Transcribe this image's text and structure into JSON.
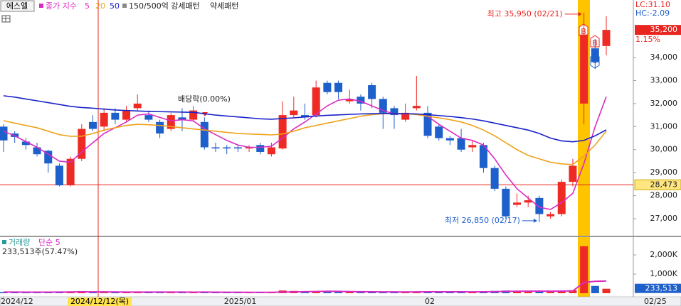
{
  "chart_data": {
    "type": "candlestick",
    "stock_name": "에스엘",
    "indicator_label": "종가 지수",
    "pattern_labels": [
      "150/500억 강세패턴",
      "약세패턴"
    ],
    "categories": [
      "2024/12",
      null,
      null,
      null,
      null,
      null,
      null,
      null,
      null,
      null,
      null,
      null,
      null,
      null,
      null,
      null,
      null,
      null,
      null,
      null,
      "2025/01",
      null,
      null,
      null,
      null,
      null,
      null,
      null,
      null,
      null,
      null,
      null,
      null,
      null,
      null,
      null,
      null,
      null,
      "02",
      null,
      null,
      null,
      null,
      null,
      null,
      null,
      null,
      null,
      null,
      null,
      null,
      null,
      null,
      null,
      null
    ],
    "open": [
      31000,
      30700,
      30350,
      30100,
      29950,
      29300,
      28450,
      29600,
      31200,
      31000,
      31600,
      31300,
      31800,
      31500,
      31200,
      30900,
      31400,
      31300,
      31200,
      30100,
      30100,
      30100,
      30050,
      30200,
      29800,
      30050,
      31500,
      31500,
      31500,
      32900,
      32900,
      32100,
      32300,
      32800,
      32200,
      31800,
      31300,
      31800,
      31600,
      31000,
      30500,
      30500,
      30100,
      30200,
      29200,
      28300,
      27600,
      27700,
      27900,
      27100,
      27200,
      28600,
      32000,
      34400,
      34500
    ],
    "high": [
      31100,
      30800,
      30500,
      30300,
      30000,
      29400,
      29700,
      31100,
      31500,
      31800,
      31800,
      31900,
      32400,
      31700,
      31300,
      31600,
      31800,
      31900,
      31400,
      30300,
      30200,
      30200,
      30200,
      30300,
      30300,
      32100,
      32300,
      32000,
      33000,
      33000,
      33000,
      32600,
      32400,
      32900,
      32300,
      31900,
      32000,
      33200,
      31900,
      31100,
      30600,
      30900,
      30400,
      30300,
      29300,
      28400,
      28100,
      28000,
      28000,
      27300,
      28700,
      29600,
      35950,
      34800,
      35800
    ],
    "low": [
      29900,
      30300,
      30000,
      29700,
      29000,
      28400,
      28400,
      29500,
      30800,
      30800,
      31100,
      31200,
      31700,
      31200,
      30500,
      30800,
      30800,
      31200,
      30000,
      29900,
      29800,
      29900,
      29900,
      29800,
      29700,
      30000,
      31400,
      31300,
      31400,
      32400,
      32200,
      32000,
      31700,
      31800,
      30900,
      30900,
      31200,
      31700,
      30500,
      30400,
      30200,
      29900,
      29900,
      29000,
      28200,
      27000,
      27500,
      27500,
      26850,
      27000,
      27100,
      28400,
      31100,
      33500,
      34100
    ],
    "close": [
      30400,
      30550,
      30200,
      29800,
      29400,
      28450,
      29600,
      30900,
      30900,
      31600,
      31300,
      31700,
      32000,
      31300,
      30700,
      31500,
      31300,
      31700,
      30100,
      30050,
      30050,
      30050,
      30100,
      29900,
      30100,
      31500,
      31700,
      31400,
      32700,
      32500,
      32500,
      32200,
      32000,
      32200,
      31600,
      31500,
      31600,
      31900,
      30600,
      30500,
      30400,
      30000,
      30200,
      29200,
      28300,
      27100,
      27700,
      27800,
      27200,
      27200,
      28600,
      29300,
      35000,
      33800,
      35200
    ],
    "up_color": "#ee2a24",
    "down_color": "#1d5fcb",
    "ma": [
      {
        "name": "5",
        "color": "#d92ac4",
        "values": [
          30800,
          30600,
          30350,
          30100,
          29800,
          29500,
          29450,
          29900,
          30300,
          30700,
          30950,
          31200,
          31500,
          31550,
          31400,
          31250,
          31300,
          31250,
          30900,
          30650,
          30400,
          30200,
          30100,
          30100,
          30150,
          30500,
          30900,
          31200,
          31550,
          31900,
          32150,
          32200,
          32100,
          31900,
          31700,
          31550,
          31550,
          31550,
          31450,
          31100,
          30800,
          30500,
          30400,
          30200,
          29600,
          28900,
          28300,
          27900,
          27500,
          27400,
          27700,
          28100,
          29400,
          31000,
          32300
        ]
      },
      {
        "name": "20",
        "color": "#efa21b",
        "values": [
          31260,
          31150,
          31050,
          30950,
          30800,
          30650,
          30580,
          30580,
          30700,
          30850,
          30950,
          31050,
          31100,
          31080,
          31050,
          31000,
          30950,
          30900,
          30850,
          30800,
          30750,
          30700,
          30680,
          30660,
          30640,
          30680,
          30800,
          30950,
          31050,
          31150,
          31250,
          31350,
          31450,
          31520,
          31560,
          31570,
          31560,
          31520,
          31450,
          31380,
          31300,
          31200,
          31050,
          30850,
          30600,
          30300,
          30000,
          29750,
          29600,
          29450,
          29380,
          29350,
          29720,
          30200,
          30800
        ]
      },
      {
        "name": "50",
        "color": "#1a22c8",
        "values": [
          32340,
          32280,
          32200,
          32120,
          32040,
          31960,
          31880,
          31830,
          31800,
          31760,
          31720,
          31700,
          31680,
          31660,
          31650,
          31640,
          31630,
          31620,
          31560,
          31500,
          31460,
          31420,
          31380,
          31340,
          31320,
          31350,
          31380,
          31420,
          31460,
          31490,
          31510,
          31530,
          31550,
          31560,
          31570,
          31570,
          31560,
          31550,
          31520,
          31480,
          31440,
          31390,
          31330,
          31250,
          31150,
          31050,
          30950,
          30850,
          30700,
          30500,
          30380,
          30340,
          30400,
          30600,
          30860
        ]
      }
    ],
    "ylim": [
      26260,
      36500
    ],
    "yticks": [
      {
        "value": 27000,
        "label": "27,000"
      },
      {
        "value": 28000,
        "label": "28,000"
      },
      {
        "value": 29000,
        "label": "29,000"
      },
      {
        "value": 30000,
        "label": "30,000"
      },
      {
        "value": 31000,
        "label": "31,000"
      },
      {
        "value": 32000,
        "label": "32,000"
      },
      {
        "value": 33000,
        "label": "33,000"
      },
      {
        "value": 34000,
        "label": "34,000"
      }
    ],
    "lc_label": "LC:31.10",
    "hc_label": "HC:-2.09",
    "last_price": {
      "value": 35200,
      "label": "35,200"
    },
    "change_label": "1.15%",
    "ref_line": {
      "value": 28473,
      "label": "28,473"
    },
    "high_annotation": "최고 35,950 (02/21)",
    "low_annotation": "최저 26,850 (02/17)",
    "dividend_label": "배당락(0.00%)",
    "signals": [
      "B",
      "B",
      "S"
    ],
    "crosshair_label": "2024/12/12(목)",
    "last_date": "02/25",
    "volume": {
      "name": "거래량",
      "ma_label": "단순 5",
      "summary": "233,513주(57.47%)",
      "values": [
        60000,
        45000,
        40000,
        50000,
        70000,
        90000,
        80000,
        110000,
        60000,
        70000,
        50000,
        60000,
        70000,
        50000,
        60000,
        55000,
        50000,
        65000,
        70000,
        45000,
        40000,
        45000,
        40000,
        50000,
        55000,
        140000,
        120000,
        80000,
        110000,
        90000,
        70000,
        60000,
        60000,
        70000,
        80000,
        60000,
        55000,
        90000,
        100000,
        70000,
        60000,
        65000,
        55000,
        90000,
        120000,
        140000,
        90000,
        80000,
        110000,
        70000,
        130000,
        160000,
        2450000,
        380000,
        233513
      ],
      "ma_values": [
        60000,
        58000,
        56000,
        55000,
        57000,
        60000,
        65000,
        72000,
        70000,
        68000,
        64000,
        62000,
        60000,
        59000,
        60000,
        60000,
        58000,
        57000,
        58000,
        56000,
        52000,
        50000,
        48000,
        46000,
        48000,
        60000,
        70000,
        80000,
        90000,
        100000,
        95000,
        85000,
        78000,
        72000,
        70000,
        68000,
        66000,
        70000,
        75000,
        76000,
        75000,
        73000,
        70000,
        72000,
        80000,
        95000,
        100000,
        105000,
        110000,
        105000,
        110000,
        120000,
        560000,
        620000,
        640000
      ],
      "color_up": "#ee2a24",
      "color_down": "#1d5fcb",
      "ma_color": "#d92ac4",
      "ylim": [
        0,
        2890000
      ],
      "yticks": [
        {
          "value": 1000000,
          "label": "1,000K"
        },
        {
          "value": 2000000,
          "label": "2,000K"
        }
      ],
      "current_label": "233,513",
      "ratio_label": "57.47%"
    }
  }
}
